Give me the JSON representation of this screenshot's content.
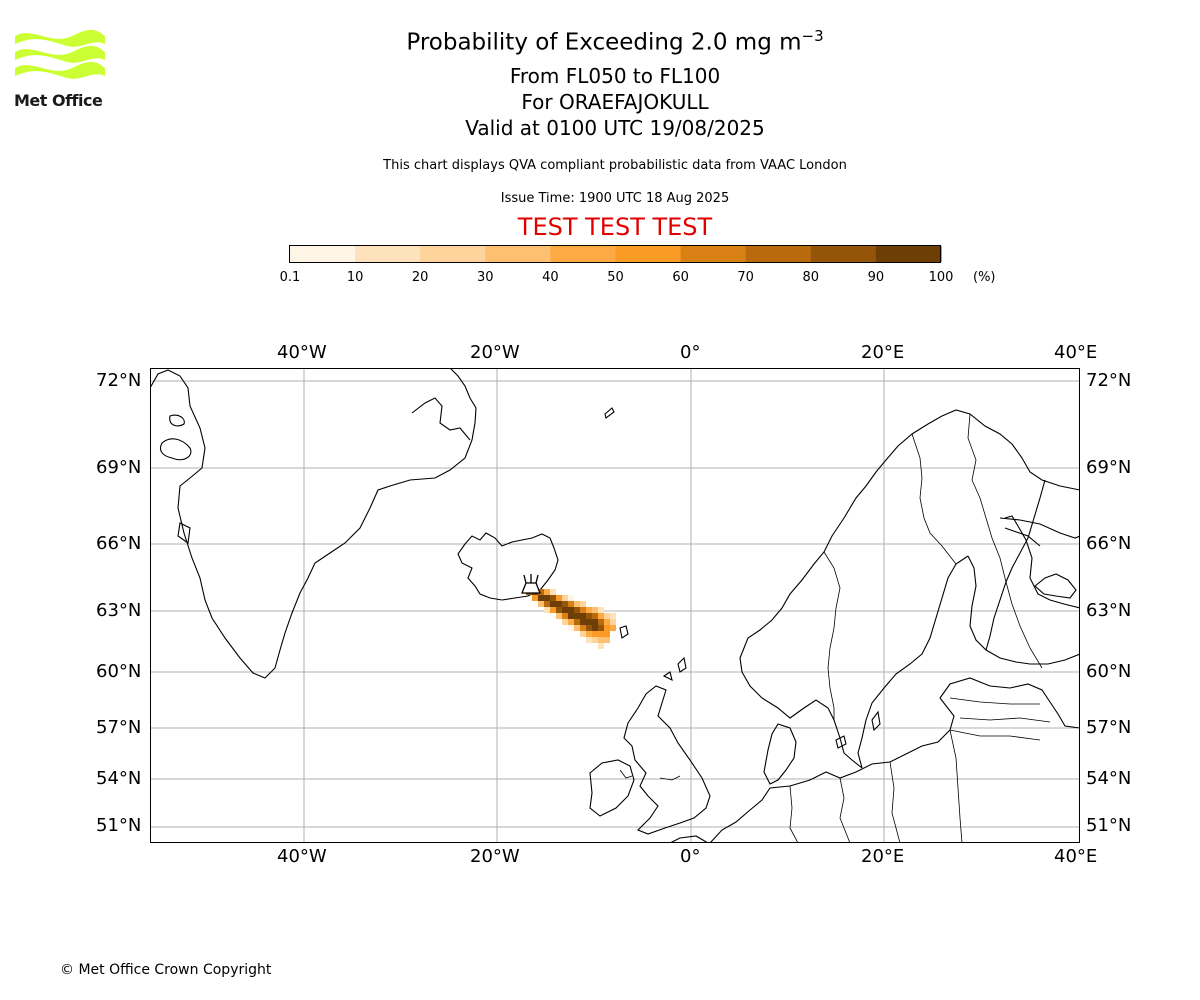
{
  "header": {
    "title_prefix": "Probability of Exceeding 2.0 mg m",
    "title_exponent": "−3",
    "levels": "From FL050 to FL100",
    "volcano": "For ORAEFAJOKULL",
    "valid": "Valid at 0100 UTC 19/08/2025",
    "subtitle": "This chart displays QVA compliant probabilistic data from VAAC London",
    "issue_time": "Issue Time: 1900 UTC 18 Aug 2025",
    "test_banner": "TEST TEST TEST"
  },
  "logo": {
    "text": "Met Office",
    "color": "#ccff33"
  },
  "colorbar": {
    "ticks": [
      "0.1",
      "10",
      "20",
      "30",
      "40",
      "50",
      "60",
      "70",
      "80",
      "90",
      "100"
    ],
    "unit": "(%)",
    "colors": [
      "#fff5e6",
      "#fee2bc",
      "#fed39c",
      "#fdbf70",
      "#fdaa45",
      "#f99b25",
      "#d98114",
      "#b96a0c",
      "#955508",
      "#6e3e07"
    ]
  },
  "map": {
    "lon_labels": [
      "40°W",
      "20°W",
      "0°",
      "20°E",
      "40°E"
    ],
    "lat_labels": [
      "72°N",
      "69°N",
      "66°N",
      "63°N",
      "60°N",
      "57°N",
      "54°N",
      "51°N"
    ],
    "plume_probability_range": [
      0.1,
      100
    ],
    "volcano_marker": "volcano-icon"
  },
  "footer": {
    "copyright": "© Met Office Crown Copyright"
  }
}
